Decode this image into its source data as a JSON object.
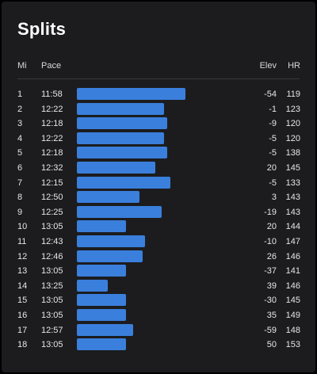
{
  "title": "Splits",
  "columns": {
    "mi": "Mi",
    "pace": "Pace",
    "elev": "Elev",
    "hr": "HR"
  },
  "colors": {
    "bar": "#3a7fdc",
    "background": "#1c1c1e"
  },
  "splits": [
    {
      "mi": "1",
      "pace": "11:58",
      "elev": "-54",
      "hr": "119"
    },
    {
      "mi": "2",
      "pace": "12:22",
      "elev": "-1",
      "hr": "123"
    },
    {
      "mi": "3",
      "pace": "12:18",
      "elev": "-9",
      "hr": "120"
    },
    {
      "mi": "4",
      "pace": "12:22",
      "elev": "-5",
      "hr": "120"
    },
    {
      "mi": "5",
      "pace": "12:18",
      "elev": "-5",
      "hr": "138"
    },
    {
      "mi": "6",
      "pace": "12:32",
      "elev": "20",
      "hr": "145"
    },
    {
      "mi": "7",
      "pace": "12:15",
      "elev": "-5",
      "hr": "133"
    },
    {
      "mi": "8",
      "pace": "12:50",
      "elev": "3",
      "hr": "143"
    },
    {
      "mi": "9",
      "pace": "12:25",
      "elev": "-19",
      "hr": "143"
    },
    {
      "mi": "10",
      "pace": "13:05",
      "elev": "20",
      "hr": "144"
    },
    {
      "mi": "11",
      "pace": "12:43",
      "elev": "-10",
      "hr": "147"
    },
    {
      "mi": "12",
      "pace": "12:46",
      "elev": "26",
      "hr": "146"
    },
    {
      "mi": "13",
      "pace": "13:05",
      "elev": "-37",
      "hr": "141"
    },
    {
      "mi": "14",
      "pace": "13:25",
      "elev": "39",
      "hr": "146"
    },
    {
      "mi": "15",
      "pace": "13:05",
      "elev": "-30",
      "hr": "145"
    },
    {
      "mi": "16",
      "pace": "13:05",
      "elev": "35",
      "hr": "149"
    },
    {
      "mi": "17",
      "pace": "12:57",
      "elev": "-59",
      "hr": "148"
    },
    {
      "mi": "18",
      "pace": "13:05",
      "elev": "50",
      "hr": "153"
    }
  ]
}
